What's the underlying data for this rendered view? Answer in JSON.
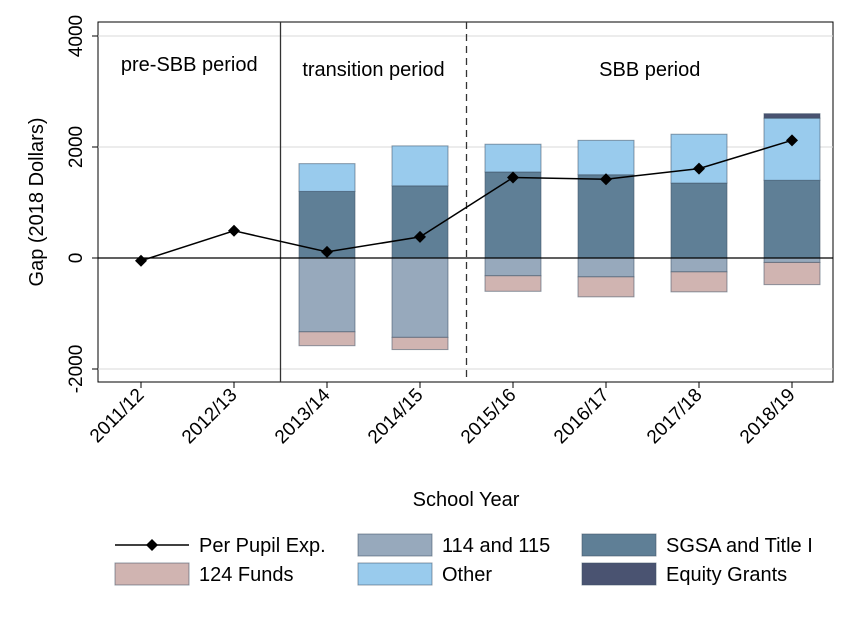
{
  "chart_data": {
    "type": "bar",
    "categories": [
      "2011/12",
      "2012/13",
      "2013/14",
      "2014/15",
      "2015/16",
      "2016/17",
      "2017/18",
      "2018/19"
    ],
    "xlabel": "School Year",
    "ylabel": "Gap (2018 Dollars)",
    "ylim": [
      -2000,
      4000
    ],
    "yticks": [
      -2000,
      0,
      2000,
      4000
    ],
    "grid": true,
    "legend_position": "bottom",
    "periods": [
      {
        "label": "pre-SBB period",
        "start_index": 0,
        "end_index": 1
      },
      {
        "label": "transition period",
        "start_index": 2,
        "end_index": 3
      },
      {
        "label": "SBB period",
        "start_index": 4,
        "end_index": 7
      }
    ],
    "series": [
      {
        "name": "SGSA and Title I",
        "kind": "bar",
        "color": "#5f7f96",
        "values": [
          null,
          null,
          1200,
          1300,
          1550,
          1500,
          1350,
          1400
        ]
      },
      {
        "name": "Other",
        "kind": "bar",
        "color": "#99cbed",
        "values": [
          null,
          null,
          500,
          720,
          500,
          620,
          880,
          1120
        ]
      },
      {
        "name": "Equity Grants",
        "kind": "bar",
        "color": "#4a5371",
        "values": [
          null,
          null,
          0,
          0,
          0,
          0,
          0,
          80
        ]
      },
      {
        "name": "114 and 115",
        "kind": "bar",
        "color": "#97a9bc",
        "values": [
          null,
          null,
          -1330,
          -1430,
          -320,
          -340,
          -250,
          -80
        ]
      },
      {
        "name": "124 Funds",
        "kind": "bar",
        "color": "#d0b4b1",
        "values": [
          null,
          null,
          -250,
          -220,
          -280,
          -360,
          -360,
          -400
        ]
      },
      {
        "name": "Per Pupil Exp.",
        "kind": "line",
        "color": "#000000",
        "values": [
          -50,
          490,
          110,
          380,
          1450,
          1420,
          1610,
          2120
        ]
      }
    ],
    "legend": [
      {
        "label": "Per Pupil Exp.",
        "type": "line",
        "color": "#000000"
      },
      {
        "label": "114 and 115",
        "type": "box",
        "color": "#97a9bc"
      },
      {
        "label": "SGSA and Title I",
        "type": "box",
        "color": "#5f7f96"
      },
      {
        "label": "124 Funds",
        "type": "box",
        "color": "#d0b4b1"
      },
      {
        "label": "Other",
        "type": "box",
        "color": "#99cbed"
      },
      {
        "label": "Equity Grants",
        "type": "box",
        "color": "#4a5371"
      }
    ]
  }
}
